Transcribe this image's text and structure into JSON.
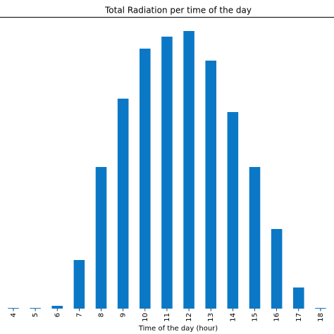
{
  "chart_data": {
    "type": "bar",
    "title": "Total Radiation per time of the day",
    "xlabel": "Time of the day (hour)",
    "categories": [
      "4",
      "5",
      "6",
      "7",
      "8",
      "9",
      "10",
      "11",
      "12",
      "13",
      "14",
      "15",
      "16",
      "17",
      "18"
    ],
    "values": [
      1,
      1,
      4,
      69,
      201,
      298,
      369,
      386,
      394,
      352,
      279,
      201,
      113,
      30,
      1
    ],
    "color": "#0b78c6",
    "ylim": [
      0,
      414
    ]
  }
}
